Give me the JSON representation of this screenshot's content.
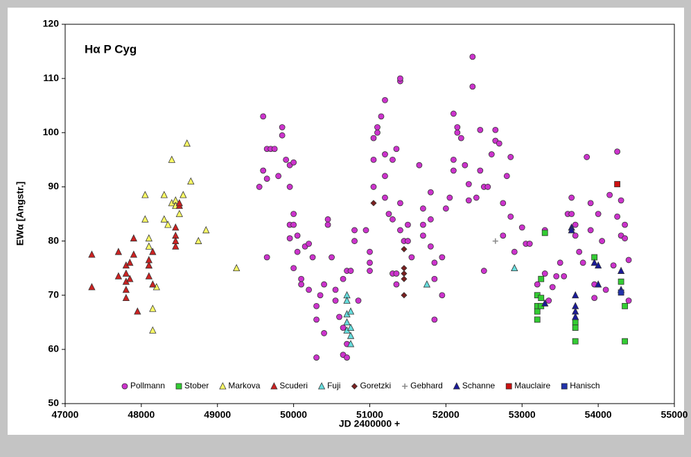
{
  "chart_data": {
    "type": "scatter",
    "title": "Hα P Cyg",
    "x_label": "JD 2400000 +",
    "y_label": "EWα [Angstr.]",
    "xlim": [
      47000,
      55000
    ],
    "ylim": [
      50,
      120
    ],
    "xticks": [
      47000,
      48000,
      49000,
      50000,
      51000,
      52000,
      53000,
      54000,
      55000
    ],
    "yticks": [
      50,
      60,
      70,
      80,
      90,
      100,
      110,
      120
    ],
    "grid": false,
    "legend": "bottom",
    "series": [
      {
        "name": "Pollmann",
        "color": "#cc33cc",
        "marker": "circle",
        "x": [
          49550,
          49600,
          49600,
          49650,
          49650,
          49700,
          49750,
          49800,
          49850,
          49850,
          49900,
          49950,
          49950,
          49950,
          49950,
          50000,
          50000,
          50000,
          50050,
          50000,
          50050,
          50100,
          50100,
          50150,
          50200,
          50250,
          50200,
          49650,
          50300,
          50300,
          50300,
          50350,
          50400,
          50400,
          50450,
          50450,
          50500,
          50550,
          50550,
          50600,
          50650,
          50650,
          50650,
          50700,
          50700,
          50700,
          50750,
          50800,
          50800,
          50850,
          50950,
          51000,
          51000,
          51000,
          51050,
          51050,
          51050,
          51100,
          51100,
          51150,
          51200,
          51200,
          51200,
          51200,
          51250,
          51300,
          51300,
          51350,
          51400,
          51400,
          51400,
          51400,
          51450,
          51350,
          51350,
          51500,
          51500,
          51550,
          51650,
          51700,
          51700,
          51700,
          51800,
          51800,
          51800,
          51850,
          51850,
          51850,
          51950,
          51950,
          52000,
          52050,
          52100,
          52100,
          52100,
          52150,
          52150,
          52200,
          52250,
          52300,
          52300,
          52350,
          52350,
          52400,
          52450,
          52450,
          52500,
          52500,
          52550,
          52600,
          52650,
          52650,
          52700,
          52750,
          52750,
          52800,
          52850,
          52850,
          52900,
          53000,
          53050,
          53100,
          53200,
          53300,
          53300,
          53350,
          53400,
          53450,
          53500,
          53550,
          53600,
          53650,
          53650,
          53700,
          53700,
          53750,
          53800,
          53850,
          53900,
          53900,
          53950,
          53950,
          54000,
          54050,
          54100,
          54150,
          54200,
          54250,
          54250,
          54300,
          54300,
          54350,
          54350,
          54400,
          54400,
          51300
        ],
        "values": [
          90,
          93,
          103,
          97,
          91.5,
          97,
          97,
          92,
          101,
          99.5,
          95,
          94,
          90,
          83,
          80.5,
          94.5,
          85,
          83,
          81,
          75,
          78,
          73,
          72,
          79,
          79.5,
          77,
          71,
          77,
          68,
          65.5,
          58.5,
          70,
          63,
          72,
          84,
          83,
          77,
          71,
          69,
          66,
          73,
          64,
          59,
          58.5,
          61,
          74.5,
          74.5,
          80,
          82,
          69,
          82,
          74.5,
          76,
          78,
          90,
          95,
          99,
          101,
          100,
          103,
          106,
          92,
          96,
          88,
          85,
          84,
          74,
          97,
          109.5,
          110,
          87,
          82,
          80,
          74,
          72,
          80,
          83,
          77,
          94,
          86,
          83,
          81,
          89,
          84,
          79,
          76,
          65.5,
          73,
          70,
          77,
          86,
          88,
          93,
          95,
          103.5,
          101,
          100,
          99,
          94,
          90.5,
          87.5,
          114,
          108.5,
          88,
          93,
          100.5,
          90,
          74.5,
          90,
          96,
          100.5,
          98.5,
          98,
          87,
          81,
          92,
          95.5,
          84.5,
          78,
          82.5,
          79.5,
          79.5,
          72,
          82,
          74,
          69,
          71.5,
          73.5,
          76,
          73.5,
          85,
          88,
          85,
          83,
          81,
          78,
          76,
          95.5,
          87,
          82,
          72,
          69.5,
          85,
          80,
          71,
          88.5,
          75.5,
          96.5,
          84.5,
          87.5,
          81,
          83,
          80.5,
          76.5,
          69,
          95
        ]
      },
      {
        "name": "Stober",
        "color": "#33cc33",
        "marker": "square",
        "x": [
          53200,
          53200,
          53200,
          53200,
          53250,
          53250,
          53300,
          53700,
          53700,
          53700,
          53950,
          54300,
          54350,
          54350,
          53250
        ],
        "values": [
          70,
          68,
          67,
          65.5,
          69.5,
          73,
          81.5,
          65,
          64,
          61.5,
          77,
          72.5,
          68,
          61.5,
          68
        ]
      },
      {
        "name": "Markova",
        "color": "#ffff66",
        "marker": "triangle",
        "x": [
          48050,
          48050,
          48100,
          48100,
          48100,
          48150,
          48150,
          48200,
          48300,
          48300,
          48350,
          48400,
          48400,
          48450,
          48450,
          48500,
          48550,
          48600,
          48650,
          48750,
          48850,
          49250
        ],
        "values": [
          88.5,
          84,
          80.5,
          79,
          75.5,
          67.5,
          63.5,
          71.5,
          88.5,
          84,
          83,
          87,
          95,
          87.5,
          86.5,
          85,
          88.5,
          98,
          91,
          80,
          82,
          75
        ]
      },
      {
        "name": "Scuderi",
        "color": "#cc2222",
        "marker": "triangle",
        "x": [
          47350,
          47350,
          47700,
          47700,
          47800,
          47800,
          47800,
          47800,
          47800,
          47850,
          47850,
          47900,
          47900,
          47950,
          48100,
          48100,
          48150,
          48150,
          48100,
          48450,
          48450,
          48450,
          48500,
          48450,
          48500
        ],
        "values": [
          77.5,
          71.5,
          78,
          73.5,
          75.5,
          74,
          72.5,
          71,
          69.5,
          76,
          73,
          80.5,
          77.5,
          67,
          75.5,
          73.5,
          72,
          78,
          76.5,
          82.5,
          81,
          79,
          86.5,
          80,
          87
        ]
      },
      {
        "name": "Fuji",
        "color": "#66dddd",
        "marker": "triangle",
        "x": [
          50700,
          50700,
          50700,
          50700,
          50700,
          50750,
          50750,
          50750,
          50750,
          51750,
          52900
        ],
        "values": [
          70,
          69,
          66.5,
          65,
          63.5,
          62.5,
          61,
          67,
          64,
          72,
          75
        ]
      },
      {
        "name": "Goretzki",
        "color": "#7b2020",
        "marker": "diamond",
        "x": [
          51450,
          51450,
          51450,
          51450,
          51450,
          51050
        ],
        "values": [
          78.5,
          75,
          74,
          73,
          70,
          87
        ]
      },
      {
        "name": "Gebhard",
        "color": "#888888",
        "marker": "plus",
        "x": [
          52650
        ],
        "values": [
          80
        ]
      },
      {
        "name": "Schanne",
        "color": "#1a1a99",
        "marker": "triangle",
        "x": [
          53650,
          53650,
          53700,
          53700,
          53700,
          53700,
          53950,
          54000,
          54000,
          54300,
          54300,
          53300
        ],
        "values": [
          82.5,
          82,
          70,
          68,
          67,
          66,
          76,
          75.5,
          72,
          74.5,
          71,
          68.5
        ]
      },
      {
        "name": "Mauclaire",
        "color": "#cc1111",
        "marker": "square",
        "x": [
          54250
        ],
        "values": [
          90.5
        ]
      },
      {
        "name": "Hanisch",
        "color": "#2233aa",
        "marker": "square",
        "x": [
          54300
        ],
        "values": [
          70.5
        ]
      }
    ]
  }
}
